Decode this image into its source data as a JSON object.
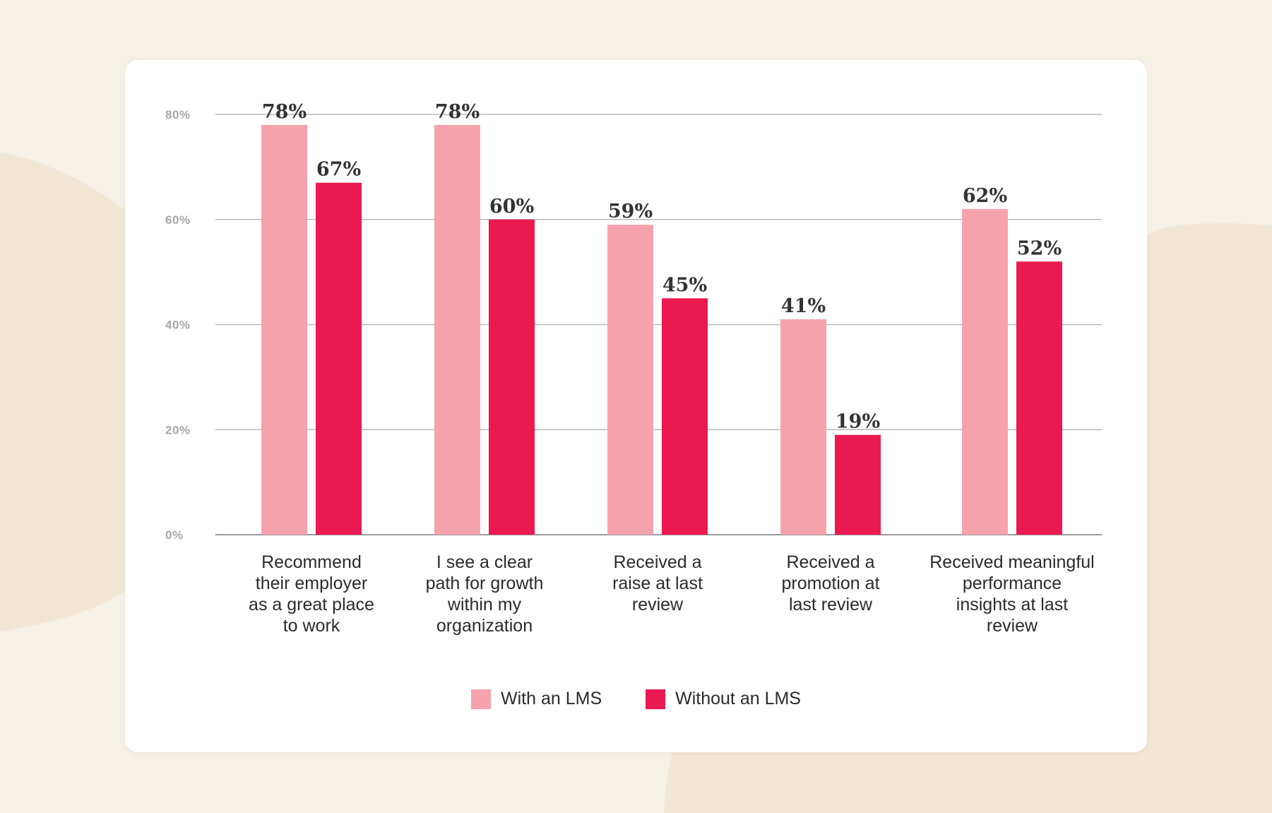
{
  "colors": {
    "background": "#f6f1e6",
    "blob": "#f2e7d5",
    "card": "#ffffff",
    "with_lms": "#f6a2ad",
    "without_lms": "#ea1a50",
    "grid": "#b9b9b9"
  },
  "chart_data": {
    "type": "bar",
    "title": "",
    "xlabel": "",
    "ylabel": "",
    "ylim": [
      0,
      80
    ],
    "yticks": [
      0,
      20,
      40,
      60,
      80
    ],
    "ytick_labels": [
      "0%",
      "20%",
      "40%",
      "60%",
      "80%"
    ],
    "categories": [
      [
        "Recommend",
        "their employer",
        "as a great place",
        "to work"
      ],
      [
        "I see a clear",
        "path for growth",
        "within my",
        "organization"
      ],
      [
        "Received a",
        "raise at last",
        "review"
      ],
      [
        "Received a",
        "promotion at",
        "last review"
      ],
      [
        "Received meaningful",
        "performance",
        "insights at last",
        "review"
      ]
    ],
    "series": [
      {
        "name": "With an LMS",
        "color": "#f6a2ad",
        "values": [
          78,
          78,
          59,
          41,
          62
        ],
        "labels": [
          "78%",
          "78%",
          "59%",
          "41%",
          "62%"
        ]
      },
      {
        "name": "Without an LMS",
        "color": "#ea1a50",
        "values": [
          67,
          60,
          45,
          19,
          52
        ],
        "labels": [
          "67%",
          "60%",
          "45%",
          "19%",
          "52%"
        ]
      }
    ],
    "legend_position": "bottom-center"
  },
  "legend": {
    "with_label": "With an LMS",
    "without_label": "Without an LMS"
  }
}
